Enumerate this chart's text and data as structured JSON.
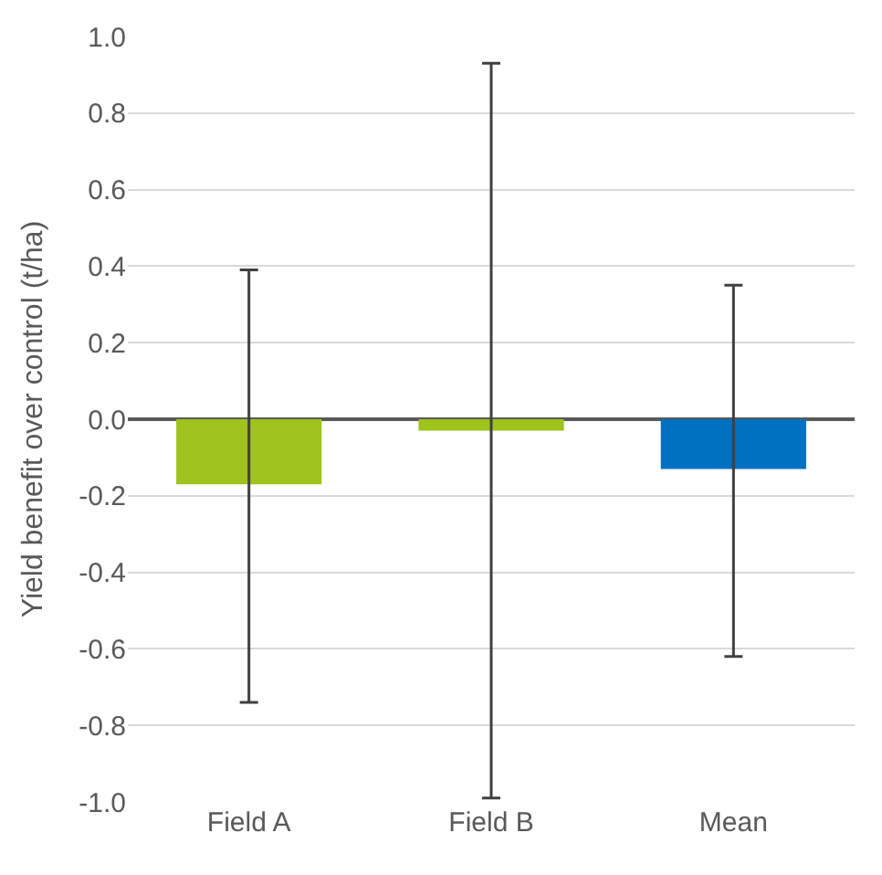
{
  "chart_data": {
    "type": "bar",
    "ylabel": "Yield benefit over control (t/ha)",
    "categories": [
      "Field A",
      "Field B",
      "Mean"
    ],
    "values": [
      -0.17,
      -0.03,
      -0.13
    ],
    "colors": [
      "#9dc31c",
      "#9dc31c",
      "#0070c0"
    ],
    "errors": [
      [
        -0.74,
        0.39
      ],
      [
        -0.99,
        0.93
      ],
      [
        -0.62,
        0.35
      ]
    ],
    "ylim": [
      -1.0,
      1.0
    ],
    "yticks": [
      {
        "value": -1.0,
        "label": "-1.0"
      },
      {
        "value": -0.8,
        "label": "-0.8"
      },
      {
        "value": -0.6,
        "label": "-0.6"
      },
      {
        "value": -0.4,
        "label": "-0.4"
      },
      {
        "value": -0.2,
        "label": "-0.2"
      },
      {
        "value": 0,
        "label": "0.0"
      },
      {
        "value": 0.2,
        "label": "0.2"
      },
      {
        "value": 0.4,
        "label": "0.4"
      },
      {
        "value": 0.6,
        "label": "0.6"
      },
      {
        "value": 0.8,
        "label": "0.8"
      },
      {
        "value": 1.0,
        "label": "1.0"
      }
    ],
    "grid": "y"
  }
}
